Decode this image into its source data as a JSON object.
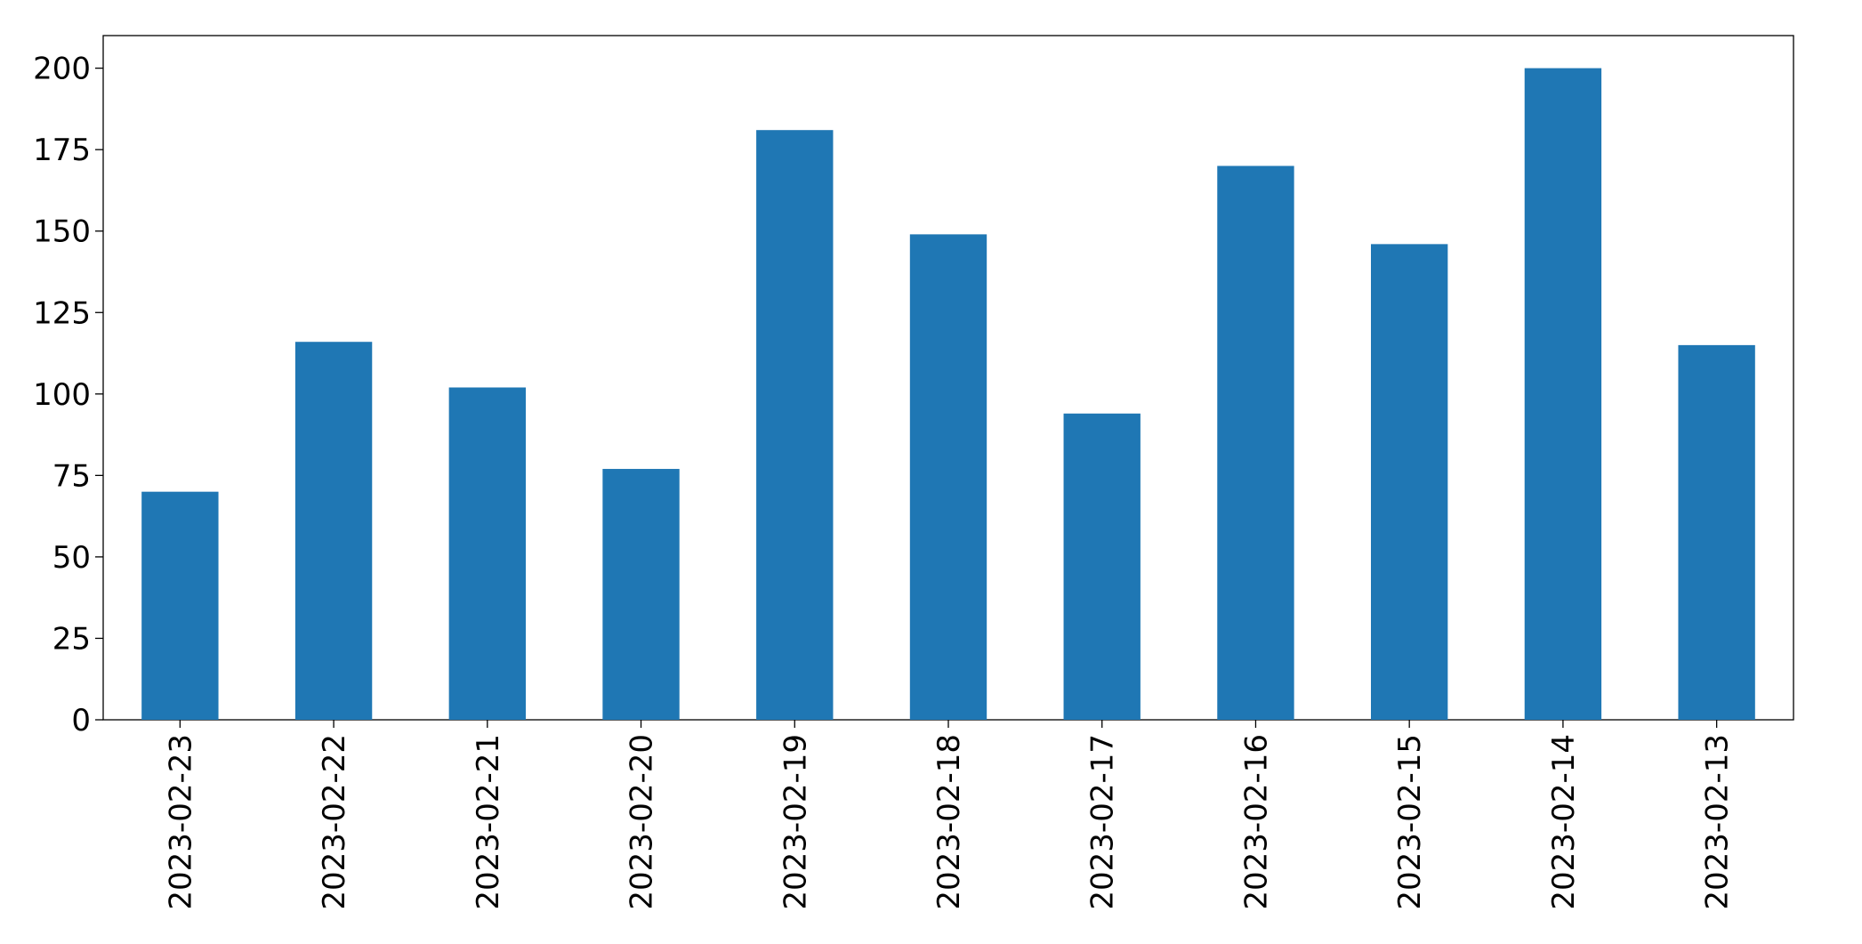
{
  "chart_data": {
    "type": "bar",
    "categories": [
      "2023-02-23",
      "2023-02-22",
      "2023-02-21",
      "2023-02-20",
      "2023-02-19",
      "2023-02-18",
      "2023-02-17",
      "2023-02-16",
      "2023-02-15",
      "2023-02-14",
      "2023-02-13"
    ],
    "values": [
      70,
      116,
      102,
      77,
      181,
      149,
      94,
      170,
      146,
      200,
      115
    ],
    "color": "#1f77b4",
    "ylim": [
      0,
      210
    ],
    "yticks": [
      0,
      25,
      50,
      75,
      100,
      125,
      150,
      175,
      200
    ],
    "grid": false
  }
}
